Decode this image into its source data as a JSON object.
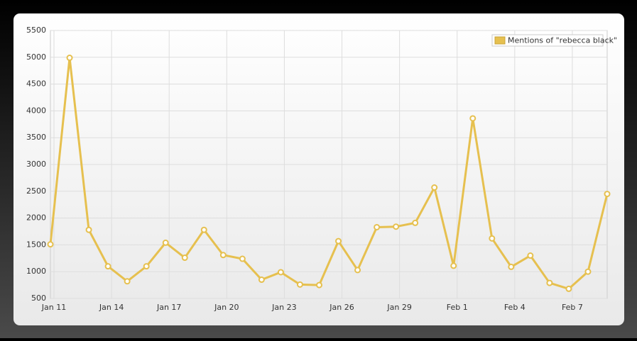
{
  "chart_data": {
    "type": "line",
    "categories": [
      "Jan 11",
      null,
      null,
      "Jan 14",
      null,
      null,
      "Jan 17",
      null,
      null,
      "Jan 20",
      null,
      null,
      "Jan 23",
      null,
      null,
      "Jan 26",
      null,
      null,
      "Jan 29",
      null,
      null,
      "Feb 1",
      null,
      null,
      "Feb 4",
      null,
      null,
      "Feb 7",
      null,
      null
    ],
    "series": [
      {
        "name": "Mentions of \"rebecca black\"",
        "color": "#e6c04f",
        "values": [
          1510,
          4990,
          1780,
          1100,
          820,
          1100,
          1540,
          1260,
          1780,
          1310,
          1240,
          850,
          990,
          760,
          750,
          1570,
          1030,
          1830,
          1840,
          1910,
          2570,
          1110,
          3860,
          1620,
          1090,
          1300,
          790,
          680,
          1000,
          2450
        ]
      }
    ],
    "ylim": [
      500,
      5500
    ],
    "yticks": [
      500,
      1000,
      1500,
      2000,
      2500,
      3000,
      3500,
      4000,
      4500,
      5000,
      5500
    ],
    "grid": true,
    "legend": "upper right"
  }
}
